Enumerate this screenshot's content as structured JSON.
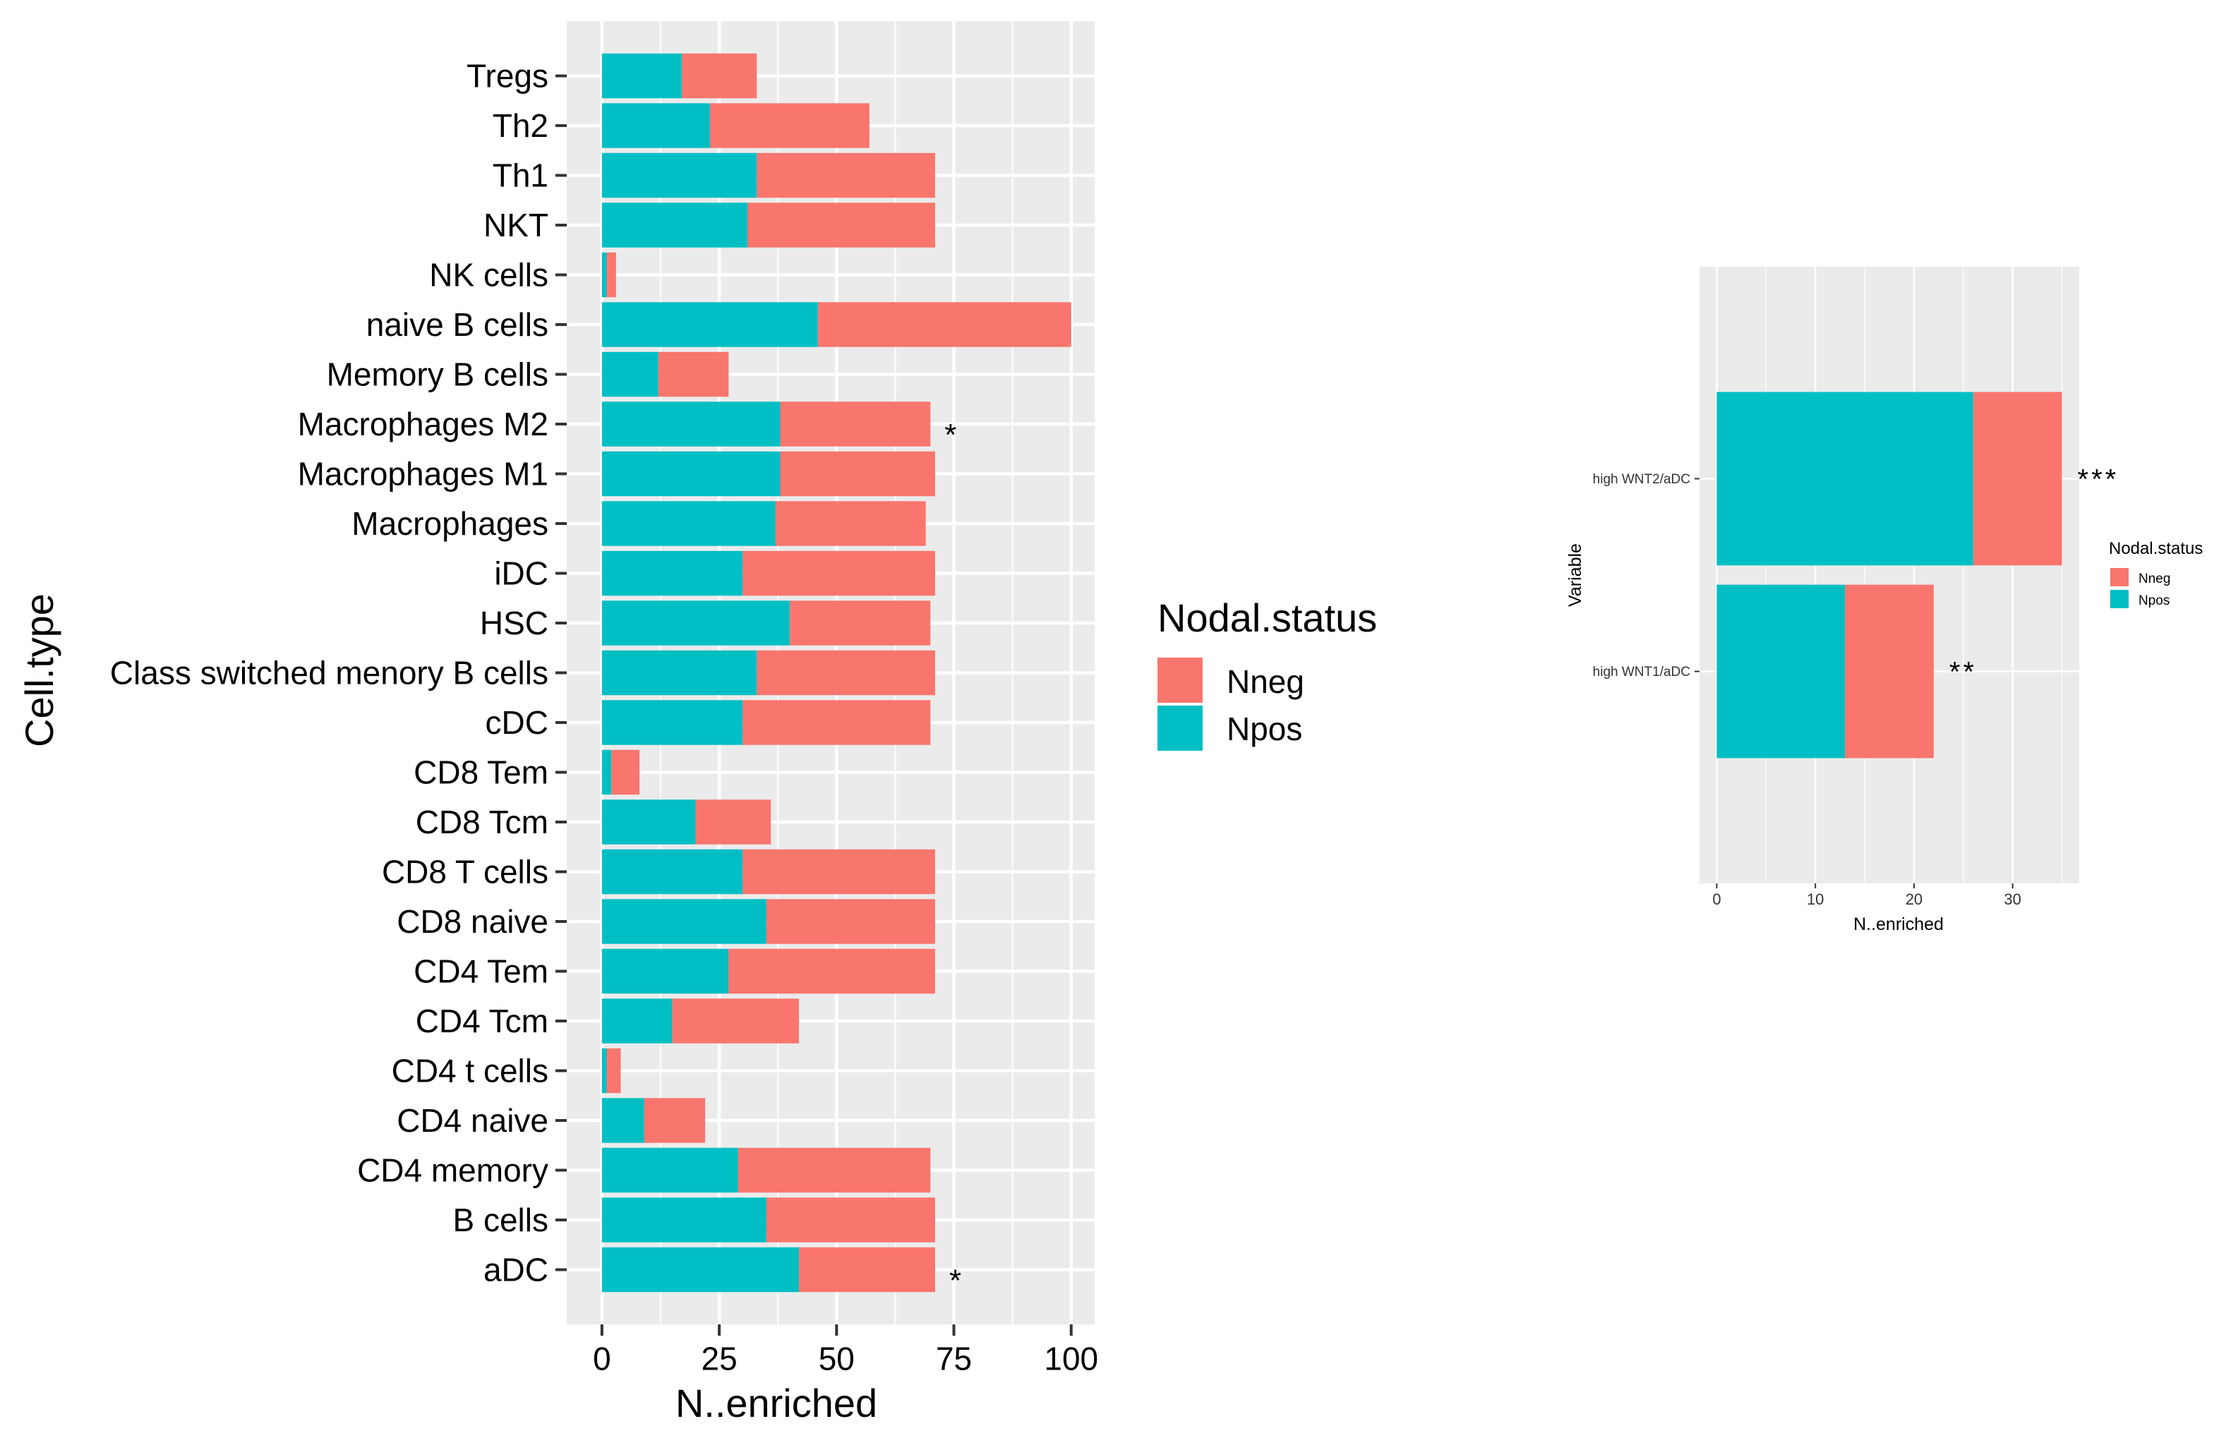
{
  "colors": {
    "nneg": "#F8766D",
    "npos": "#00BFC4",
    "panel_bg": "#EBEBEB",
    "grid": "#FFFFFF",
    "text": "#000000",
    "tick_text": "#4D4D4D"
  },
  "chart_data": [
    {
      "type": "bar",
      "orientation": "horizontal",
      "stacked": true,
      "xlabel": "N..enriched",
      "ylabel": "Cell.type",
      "xlim": [
        -7.5,
        105
      ],
      "xticks": [
        "0",
        "25",
        "50",
        "75",
        "100"
      ],
      "xtick_values": [
        0,
        25,
        50,
        75,
        100
      ],
      "grid": true,
      "categories": [
        "Tregs",
        "Th2",
        "Th1",
        "NKT",
        "NK cells",
        "naive B cells",
        "Memory B cells",
        "Macrophages M2",
        "Macrophages M1",
        "Macrophages",
        "iDC",
        "HSC",
        "Class switched menory B cells",
        "cDC",
        "CD8 Tem",
        "CD8 Tcm",
        "CD8 T cells",
        "CD8 naive",
        "CD4 Tem",
        "CD4 Tcm",
        "CD4 t cells",
        "CD4 naive",
        "CD4 memory",
        "B cells",
        "aDC"
      ],
      "series": [
        {
          "name": "Npos",
          "values": [
            17,
            23,
            33,
            31,
            1,
            46,
            12,
            38,
            38,
            37,
            30,
            40,
            33,
            30,
            2,
            20,
            30,
            35,
            27,
            15,
            1,
            9,
            29,
            35,
            42
          ]
        },
        {
          "name": "Nneg",
          "values": [
            16,
            34,
            38,
            40,
            2,
            54,
            15,
            32,
            33,
            32,
            41,
            30,
            38,
            40,
            6,
            16,
            41,
            36,
            44,
            27,
            3,
            13,
            41,
            36,
            29
          ]
        }
      ],
      "annotations": [
        {
          "category": "Macrophages M2",
          "text": "*"
        },
        {
          "category": "aDC",
          "text": "*"
        }
      ],
      "legend": {
        "title": "Nodal.status",
        "position": "right",
        "entries": [
          {
            "name": "Nneg",
            "color": "#F8766D"
          },
          {
            "name": "Npos",
            "color": "#00BFC4"
          }
        ]
      }
    },
    {
      "type": "bar",
      "orientation": "horizontal",
      "stacked": true,
      "xlabel": "N..enriched",
      "ylabel": "Variable",
      "xlim": [
        -1.75,
        36.75
      ],
      "xticks": [
        "0",
        "10",
        "20",
        "30"
      ],
      "xtick_values": [
        0,
        10,
        20,
        30
      ],
      "grid": true,
      "categories": [
        "high WNT2/aDC",
        "high WNT1/aDC"
      ],
      "series": [
        {
          "name": "Npos",
          "values": [
            26,
            13
          ]
        },
        {
          "name": "Nneg",
          "values": [
            9,
            9
          ]
        }
      ],
      "annotations": [
        {
          "category": "high WNT2/aDC",
          "text": "***"
        },
        {
          "category": "high WNT1/aDC",
          "text": "**"
        }
      ],
      "legend": {
        "title": "Nodal.status",
        "position": "right",
        "entries": [
          {
            "name": "Nneg",
            "color": "#F8766D"
          },
          {
            "name": "Npos",
            "color": "#00BFC4"
          }
        ]
      }
    }
  ]
}
